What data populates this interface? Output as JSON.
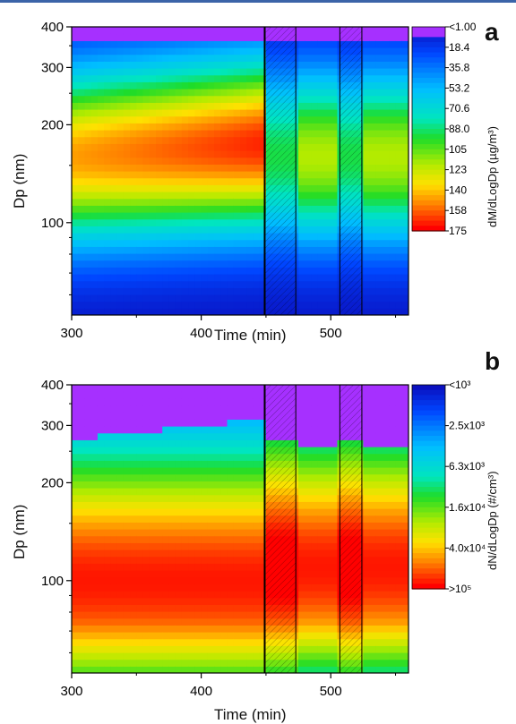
{
  "chart_data": [
    {
      "panel": "a",
      "type": "heatmap",
      "xlabel": "Time (min)",
      "ylabel": "Dp (nm)",
      "x_ticks": [
        "300",
        "400",
        "500"
      ],
      "y_ticks": [
        "100",
        "200",
        "300",
        "400"
      ],
      "xlim": [
        300,
        560
      ],
      "ylim": [
        52,
        400
      ],
      "y_scale": "log",
      "colorbar": {
        "label": "dM/dLogDp (µg/m³)",
        "ticks": [
          "<1.00",
          "18.4",
          "35.8",
          "53.2",
          "70.6",
          "88.0",
          "105",
          "123",
          "140",
          "158",
          "175"
        ],
        "range": [
          1.0,
          175
        ]
      },
      "marked_intervals": [
        [
          449,
          473
        ],
        [
          507,
          524
        ]
      ],
      "mode": {
        "peak_dp_start": 160,
        "peak_dp_end": 175,
        "peak_value_max": 170,
        "after_perturbation_value": 115
      }
    },
    {
      "panel": "b",
      "type": "heatmap",
      "xlabel": "Time (min)",
      "ylabel": "Dp (nm)",
      "x_ticks": [
        "300",
        "400",
        "500"
      ],
      "y_ticks": [
        "100",
        "200",
        "300",
        "400"
      ],
      "xlim": [
        300,
        560
      ],
      "ylim": [
        52,
        400
      ],
      "y_scale": "log",
      "colorbar": {
        "label": "dN/dLogDp (#/cm³)",
        "ticks": [
          "<10³",
          "2.5x10³",
          "6.3x10³",
          "1.6x10⁴",
          "4.0x10⁴",
          ">10⁵"
        ],
        "range": [
          1000,
          100000
        ]
      },
      "marked_intervals": [
        [
          449,
          473
        ],
        [
          507,
          524
        ]
      ],
      "upper_edge_dp": {
        "start": 272,
        "end": 315,
        "after": 262
      }
    }
  ],
  "panels": {
    "a": {
      "letter": "a",
      "xlabel": "Time (min)",
      "ylabel": "Dp (nm)",
      "cblabel": "dM/dLogDp (µg/m³)"
    },
    "b": {
      "letter": "b",
      "xlabel": "Time (min)",
      "ylabel": "Dp (nm)",
      "cblabel": "dN/dLogDp (#/cm³)"
    }
  },
  "colors": {
    "scale_low": "#0a10c0",
    "scale_mid": "#22dd22",
    "scale_high": "#ff0000",
    "below_range": "#a630ff",
    "frame": "#000000",
    "accent_line": "#3b64a8"
  }
}
